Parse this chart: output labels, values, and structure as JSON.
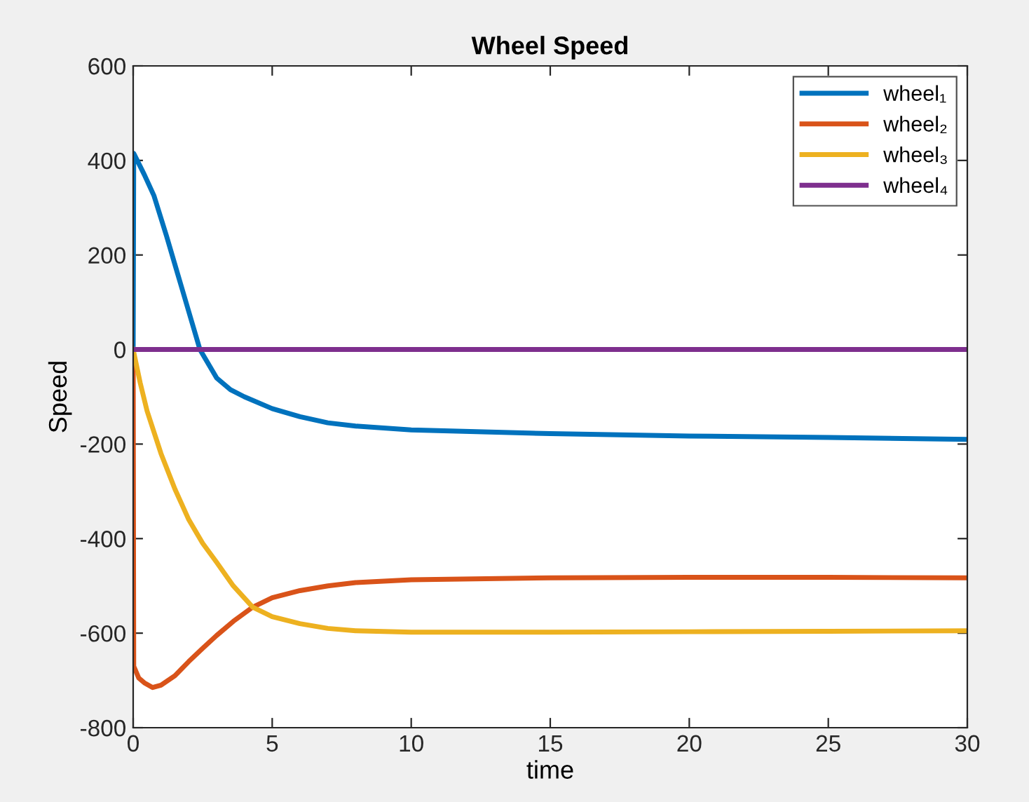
{
  "chart_data": {
    "type": "line",
    "title": "Wheel Speed",
    "xlabel": "time",
    "ylabel": "Speed",
    "xlim": [
      0,
      30
    ],
    "ylim": [
      -800,
      600
    ],
    "xticks": [
      0,
      5,
      10,
      15,
      20,
      25,
      30
    ],
    "yticks": [
      -800,
      -600,
      -400,
      -200,
      0,
      200,
      400,
      600
    ],
    "grid": false,
    "legend": "top right",
    "line_style": "solid",
    "marker": "none",
    "series": [
      {
        "name": "wheel₁",
        "color": "#0072bd",
        "x": [
          0,
          0.02,
          0.4,
          0.75,
          1.2,
          1.6,
          2,
          2.4,
          3,
          3.5,
          4,
          5,
          6,
          7,
          8,
          10,
          15,
          20,
          25,
          30
        ],
        "values": [
          0,
          415,
          370,
          325,
          240,
          160,
          80,
          0,
          -60,
          -85,
          -100,
          -125,
          -142,
          -155,
          -162,
          -170,
          -178,
          -183,
          -186,
          -190
        ]
      },
      {
        "name": "wheel₂",
        "color": "#d95319",
        "x": [
          0,
          0.02,
          0.2,
          0.4,
          0.7,
          1,
          1.5,
          2,
          2.5,
          3,
          3.6,
          4.3,
          5,
          6,
          7,
          8,
          10,
          15,
          20,
          25,
          30
        ],
        "values": [
          0,
          -670,
          -695,
          -705,
          -715,
          -710,
          -690,
          -660,
          -632,
          -605,
          -575,
          -545,
          -525,
          -510,
          -500,
          -493,
          -487,
          -483,
          -482,
          -482,
          -483
        ]
      },
      {
        "name": "wheel₃",
        "color": "#edb120",
        "x": [
          0,
          0.25,
          0.5,
          1,
          1.5,
          2,
          2.5,
          3,
          3.6,
          4.3,
          5,
          6,
          7,
          8,
          10,
          15,
          20,
          25,
          30
        ],
        "values": [
          0,
          -70,
          -130,
          -220,
          -295,
          -360,
          -410,
          -450,
          -500,
          -545,
          -565,
          -580,
          -590,
          -595,
          -598,
          -598,
          -597,
          -596,
          -595
        ]
      },
      {
        "name": "wheel₄",
        "color": "#7e2f8e",
        "x": [
          0,
          30
        ],
        "values": [
          0,
          0
        ]
      }
    ]
  }
}
